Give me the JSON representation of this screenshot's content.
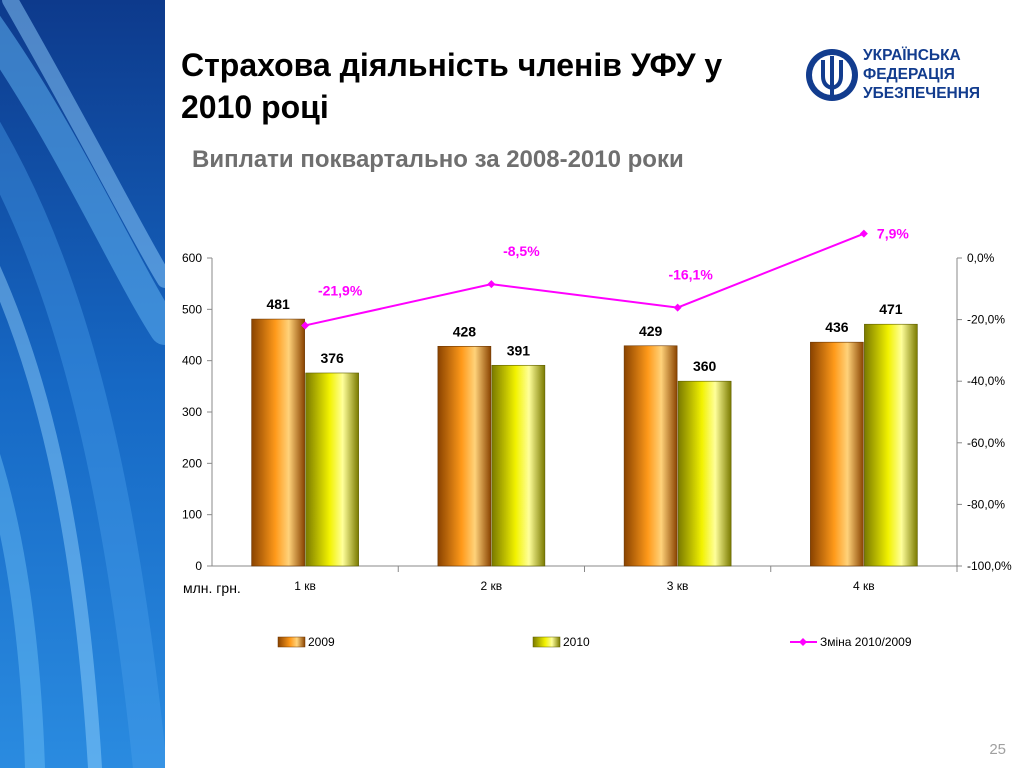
{
  "slide": {
    "title": "Страхова діяльність членів УФУ у 2010 році",
    "subtitle": "Виплати поквартально за 2008-2010 роки",
    "logo_lines": [
      "УКРАЇНСЬКА",
      "ФЕДЕРАЦІЯ",
      "УБЕЗПЕЧЕННЯ"
    ],
    "page_number": "25"
  },
  "chart_data": {
    "type": "bar",
    "categories": [
      "1 кв",
      "2 кв",
      "3 кв",
      "4 кв"
    ],
    "series": [
      {
        "name": "2009",
        "type": "bar",
        "values": [
          481,
          428,
          429,
          436
        ],
        "color": "#ff9900",
        "labels": [
          "481",
          "428",
          "429",
          "436"
        ]
      },
      {
        "name": "2010",
        "type": "bar",
        "values": [
          376,
          391,
          360,
          471
        ],
        "color": "#ffff00",
        "labels": [
          "376",
          "391",
          "360",
          "471"
        ]
      },
      {
        "name": "Зміна 2010/2009",
        "type": "line",
        "axis": "right",
        "values": [
          -21.9,
          -8.5,
          -16.1,
          7.9
        ],
        "color": "#ff00ff",
        "labels": [
          "-21,9%",
          "-8,5%",
          "-16,1%",
          "7,9%"
        ]
      }
    ],
    "y_left": {
      "min": 0,
      "max": 600,
      "ticks": [
        "0",
        "100",
        "200",
        "300",
        "400",
        "500",
        "600"
      ]
    },
    "y_right": {
      "min": -100,
      "max": 0,
      "ticks": [
        "-100,0%",
        "-80,0%",
        "-60,0%",
        "-40,0%",
        "-20,0%",
        "0,0%"
      ]
    },
    "unit_label": "млн. грн.",
    "legend_position": "bottom",
    "grid": false
  }
}
